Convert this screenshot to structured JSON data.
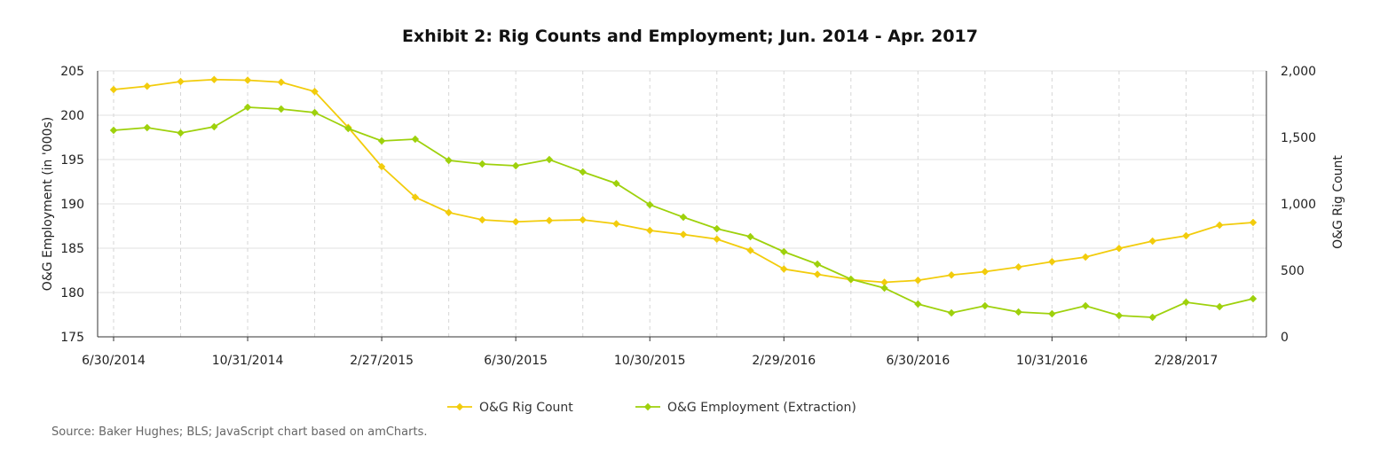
{
  "chart_data": {
    "type": "line",
    "title": "Exhibit 2: Rig Counts and Employment; Jun. 2014 - Apr. 2017",
    "x": [
      "6/30/2014",
      "7/31/2014",
      "8/29/2014",
      "9/30/2014",
      "10/31/2014",
      "11/28/2014",
      "12/31/2014",
      "1/30/2015",
      "2/27/2015",
      "3/31/2015",
      "4/30/2015",
      "5/29/2015",
      "6/30/2015",
      "7/31/2015",
      "8/31/2015",
      "9/30/2015",
      "10/30/2015",
      "11/30/2015",
      "12/31/2015",
      "1/29/2016",
      "2/29/2016",
      "3/31/2016",
      "4/29/2016",
      "5/31/2016",
      "6/30/2016",
      "7/29/2016",
      "8/31/2016",
      "9/30/2016",
      "10/31/2016",
      "11/30/2016",
      "12/30/2016",
      "1/31/2017",
      "2/28/2017",
      "3/31/2017",
      "4/28/2017"
    ],
    "x_tick_labels": [
      "6/30/2014",
      "10/31/2014",
      "2/27/2015",
      "6/30/2015",
      "10/30/2015",
      "2/29/2016",
      "6/30/2016",
      "10/31/2016",
      "2/28/2017"
    ],
    "ylabel_left": "O&G Employment (in '000s)",
    "ylabel_right": "O&G Rig Count",
    "ylim_left": [
      175,
      205
    ],
    "ylim_right": [
      0,
      2000
    ],
    "y_ticks_left": [
      "205",
      "200",
      "195",
      "190",
      "185",
      "180",
      "175"
    ],
    "y_ticks_right": [
      "2,000",
      "1,500",
      "1,000",
      "500",
      "0"
    ],
    "grid": true,
    "legend_position": "bottom",
    "series": [
      {
        "name": "O&G Rig Count",
        "axis": "right",
        "color": "#f2cc0c",
        "values": [
          1860,
          1885,
          1920,
          1935,
          1930,
          1915,
          1845,
          1575,
          1280,
          1050,
          935,
          880,
          865,
          875,
          880,
          850,
          800,
          770,
          735,
          650,
          510,
          470,
          430,
          410,
          425,
          465,
          490,
          525,
          565,
          600,
          665,
          720,
          760,
          840,
          860
        ]
      },
      {
        "name": "O&G Employment (Extraction)",
        "axis": "left",
        "color": "#9ed10c",
        "values": [
          198.3,
          198.6,
          198.0,
          198.7,
          200.9,
          200.7,
          200.3,
          198.5,
          197.1,
          197.3,
          194.9,
          194.5,
          194.3,
          195.0,
          193.6,
          192.3,
          189.9,
          188.5,
          187.2,
          186.3,
          184.6,
          183.2,
          181.5,
          180.5,
          178.7,
          177.7,
          178.5,
          177.8,
          177.6,
          178.5,
          177.4,
          177.2,
          178.9,
          178.4,
          179.3
        ]
      }
    ]
  },
  "footer": {
    "source": "Source:  Baker Hughes; BLS; JavaScript chart based on amCharts."
  }
}
